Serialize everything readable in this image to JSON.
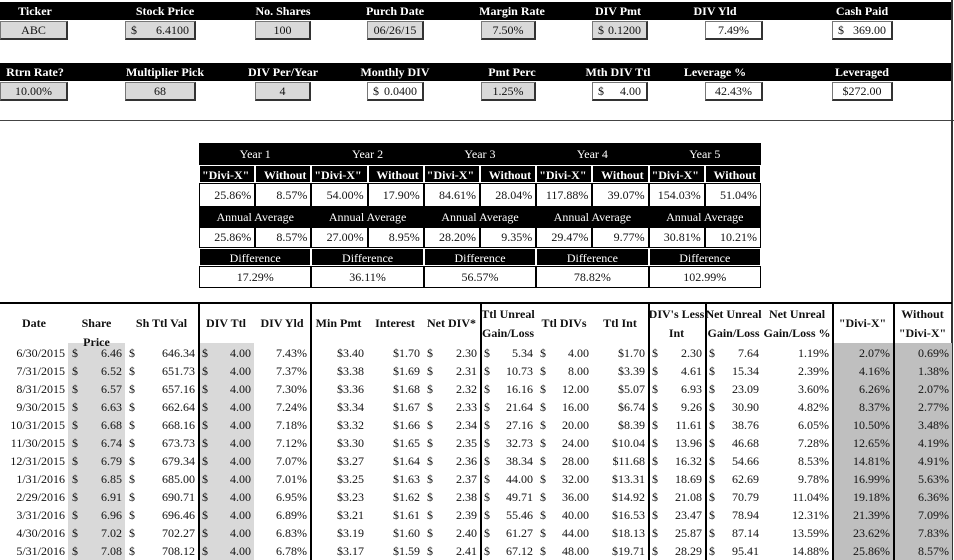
{
  "inputs": {
    "row1": [
      {
        "label": "Ticker",
        "value": "ABC",
        "input": true
      },
      {
        "label": "Stock Price",
        "currency": "$",
        "value": "6.4100",
        "input": true
      },
      {
        "label": "No. Shares",
        "value": "100",
        "input": true
      },
      {
        "label": "Purch Date",
        "value": "06/26/15",
        "input": true
      },
      {
        "label": "Margin Rate",
        "value": "7.50%",
        "input": true
      },
      {
        "label": "DIV Pmt",
        "currency": "$",
        "value": "0.1200",
        "input": true
      },
      {
        "label": "DIV Yld",
        "value": "7.49%",
        "input": false
      },
      {
        "label": "Cash Paid",
        "currency": "$",
        "value": "369.00",
        "input": false
      }
    ],
    "row2": [
      {
        "label": "Rtrn Rate?",
        "value": "10.00%",
        "input": true
      },
      {
        "label": "Multiplier Pick",
        "value": "68",
        "input": true
      },
      {
        "label": "DIV Per/Year",
        "value": "4",
        "input": true
      },
      {
        "label": "Monthly DIV",
        "currency": "$",
        "value": "0.0400",
        "input": false
      },
      {
        "label": "Pmt Perc",
        "value": "1.25%",
        "input": true
      },
      {
        "label": "Mth DIV Ttl",
        "currency": "$",
        "value": "4.00",
        "input": false
      },
      {
        "label": "Leverage %",
        "value": "42.43%",
        "input": false
      },
      {
        "label": "Leveraged",
        "value": "$272.00",
        "input": false
      }
    ]
  },
  "summary": {
    "col_divix": "\"Divi-X\"",
    "col_without": "Without",
    "annual_label": "Annual Average",
    "difference_label": "Difference",
    "years": [
      {
        "label": "Year 1",
        "divix": "25.86%",
        "without": "8.57%",
        "avg_divix": "25.86%",
        "avg_without": "8.57%",
        "difference": "17.29%"
      },
      {
        "label": "Year 2",
        "divix": "54.00%",
        "without": "17.90%",
        "avg_divix": "27.00%",
        "avg_without": "8.95%",
        "difference": "36.11%"
      },
      {
        "label": "Year 3",
        "divix": "84.61%",
        "without": "28.04%",
        "avg_divix": "28.20%",
        "avg_without": "9.35%",
        "difference": "56.57%"
      },
      {
        "label": "Year 4",
        "divix": "117.88%",
        "without": "39.07%",
        "avg_divix": "29.47%",
        "avg_without": "9.77%",
        "difference": "78.82%"
      },
      {
        "label": "Year 5",
        "divix": "154.03%",
        "without": "51.04%",
        "avg_divix": "30.81%",
        "avg_without": "10.21%",
        "difference": "102.99%"
      }
    ]
  },
  "table": {
    "currency_symbol": "$",
    "headers": [
      [
        "Date"
      ],
      [
        "Share Price"
      ],
      [
        "Sh Ttl Val"
      ],
      [
        "DIV Ttl"
      ],
      [
        "DIV Yld"
      ],
      [
        "Min Pmt"
      ],
      [
        "Interest"
      ],
      [
        "Net DIV*"
      ],
      [
        "Ttl Unreal",
        "Gain/Loss"
      ],
      [
        "Ttl DIVs"
      ],
      [
        "Ttl Int"
      ],
      [
        "DIV's Less",
        "Int"
      ],
      [
        "Net Unreal",
        "Gain/Loss"
      ],
      [
        "Net Unreal",
        "Gain/Loss %"
      ],
      [
        "\"Divi-X\""
      ],
      [
        "Without",
        "\"Divi-X\""
      ]
    ],
    "rows": [
      [
        "6/30/2015",
        "6.46",
        "646.34",
        "4.00",
        "7.43%",
        "$3.40",
        "$1.70",
        "2.30",
        "5.34",
        "4.00",
        "$1.70",
        "2.30",
        "7.64",
        "1.19%",
        "2.07%",
        "0.69%"
      ],
      [
        "7/31/2015",
        "6.52",
        "651.73",
        "4.00",
        "7.37%",
        "$3.38",
        "$1.69",
        "2.31",
        "10.73",
        "8.00",
        "$3.39",
        "4.61",
        "15.34",
        "2.39%",
        "4.16%",
        "1.38%"
      ],
      [
        "8/31/2015",
        "6.57",
        "657.16",
        "4.00",
        "7.30%",
        "$3.36",
        "$1.68",
        "2.32",
        "16.16",
        "12.00",
        "$5.07",
        "6.93",
        "23.09",
        "3.60%",
        "6.26%",
        "2.07%"
      ],
      [
        "9/30/2015",
        "6.63",
        "662.64",
        "4.00",
        "7.24%",
        "$3.34",
        "$1.67",
        "2.33",
        "21.64",
        "16.00",
        "$6.74",
        "9.26",
        "30.90",
        "4.82%",
        "8.37%",
        "2.77%"
      ],
      [
        "10/31/2015",
        "6.68",
        "668.16",
        "4.00",
        "7.18%",
        "$3.32",
        "$1.66",
        "2.34",
        "27.16",
        "20.00",
        "$8.39",
        "11.61",
        "38.76",
        "6.05%",
        "10.50%",
        "3.48%"
      ],
      [
        "11/30/2015",
        "6.74",
        "673.73",
        "4.00",
        "7.12%",
        "$3.30",
        "$1.65",
        "2.35",
        "32.73",
        "24.00",
        "$10.04",
        "13.96",
        "46.68",
        "7.28%",
        "12.65%",
        "4.19%"
      ],
      [
        "12/31/2015",
        "6.79",
        "679.34",
        "4.00",
        "7.07%",
        "$3.27",
        "$1.64",
        "2.36",
        "38.34",
        "28.00",
        "$11.68",
        "16.32",
        "54.66",
        "8.53%",
        "14.81%",
        "4.91%"
      ],
      [
        "1/31/2016",
        "6.85",
        "685.00",
        "4.00",
        "7.01%",
        "$3.25",
        "$1.63",
        "2.37",
        "44.00",
        "32.00",
        "$13.31",
        "18.69",
        "62.69",
        "9.78%",
        "16.99%",
        "5.63%"
      ],
      [
        "2/29/2016",
        "6.91",
        "690.71",
        "4.00",
        "6.95%",
        "$3.23",
        "$1.62",
        "2.38",
        "49.71",
        "36.00",
        "$14.92",
        "21.08",
        "70.79",
        "11.04%",
        "19.18%",
        "6.36%"
      ],
      [
        "3/31/2016",
        "6.96",
        "696.46",
        "4.00",
        "6.89%",
        "$3.21",
        "$1.61",
        "2.39",
        "55.46",
        "40.00",
        "$16.53",
        "23.47",
        "78.94",
        "12.31%",
        "21.39%",
        "7.09%"
      ],
      [
        "4/30/2016",
        "7.02",
        "702.27",
        "4.00",
        "6.83%",
        "$3.19",
        "$1.60",
        "2.40",
        "61.27",
        "44.00",
        "$18.13",
        "25.87",
        "87.14",
        "13.59%",
        "23.62%",
        "7.83%"
      ],
      [
        "5/31/2016",
        "7.08",
        "708.12",
        "4.00",
        "6.78%",
        "$3.17",
        "$1.59",
        "2.41",
        "67.12",
        "48.00",
        "$19.71",
        "28.29",
        "95.41",
        "14.88%",
        "25.86%",
        "8.57%"
      ]
    ]
  },
  "colors": {
    "input_fill": "#d9d9d9",
    "shaded_column": "#d9d9d9",
    "result_column": "#bfbfbf",
    "header": "#000000"
  }
}
